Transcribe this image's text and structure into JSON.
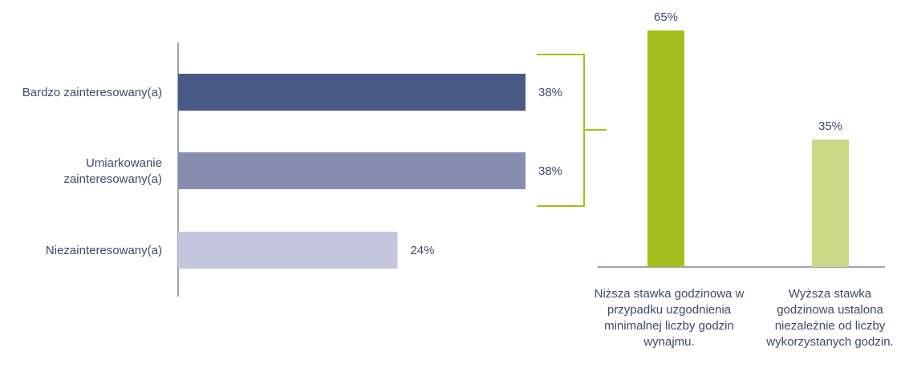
{
  "chart_data": [
    {
      "type": "bar",
      "orientation": "horizontal",
      "categories": [
        "Bardzo zainteresowany(a)",
        "Umiarkowanie\nzainteresowany(a)",
        "Niezainteresowany(a)"
      ],
      "values": [
        38,
        38,
        24
      ],
      "value_labels": [
        "38%",
        "38%",
        "24%"
      ],
      "colors": [
        "#4a5a87",
        "#868db0",
        "#c3c6dc"
      ],
      "unit": "%"
    },
    {
      "type": "bar",
      "orientation": "vertical",
      "categories": [
        "Niższa stawka godzinowa w przypadku uzgodnienia minimalnej liczby godzin wynajmu.",
        "Wyższa stawka godzinowa ustalona niezależnie od liczby wykorzystanych godzin."
      ],
      "values": [
        65,
        35
      ],
      "value_labels": [
        "65%",
        "35%"
      ],
      "colors": [
        "#a2bf1d",
        "#c9d985"
      ],
      "unit": "%"
    }
  ],
  "colors": {
    "bracket": "#a2bf1d",
    "axis": "#3d4a6e",
    "text": "#3d4a6e"
  }
}
